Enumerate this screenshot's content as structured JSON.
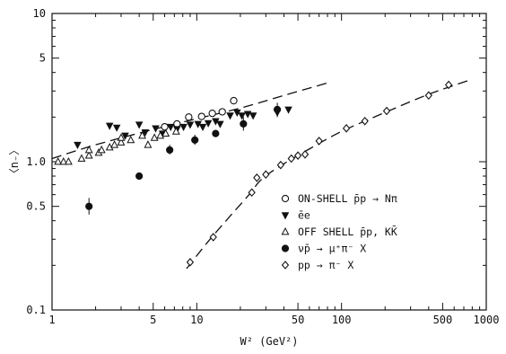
{
  "chart_data": {
    "type": "scatter",
    "title": "",
    "xlabel": "W² (GeV²)",
    "ylabel": "〈n₋〉",
    "xscale": "log",
    "yscale": "log",
    "xlim": [
      1,
      1000
    ],
    "ylim": [
      0.1,
      10
    ],
    "grid": false,
    "legend_position": "lower-right",
    "x_tick_labels": [
      {
        "value": 1,
        "label": "1"
      },
      {
        "value": 5,
        "label": "5"
      },
      {
        "value": 10,
        "label": "10"
      },
      {
        "value": 50,
        "label": "50"
      },
      {
        "value": 100,
        "label": "100"
      },
      {
        "value": 500,
        "label": "500"
      },
      {
        "value": 1000,
        "label": "1000"
      }
    ],
    "y_tick_labels": [
      {
        "value": 0.1,
        "label": "0.1"
      },
      {
        "value": 0.5,
        "label": "0.5"
      },
      {
        "value": 1.0,
        "label": "1.0"
      },
      {
        "value": 5,
        "label": "5"
      },
      {
        "value": 10,
        "label": "10"
      }
    ],
    "series": [
      {
        "key": "onshell",
        "name": "ON-SHELL p̄p → Nπ",
        "marker": "open-circle",
        "points": [
          {
            "x": 6.0,
            "y": 1.72
          },
          {
            "x": 7.3,
            "y": 1.8
          },
          {
            "x": 8.8,
            "y": 2.0
          },
          {
            "x": 10.8,
            "y": 2.02
          },
          {
            "x": 12.8,
            "y": 2.12
          },
          {
            "x": 15.0,
            "y": 2.17
          },
          {
            "x": 18.0,
            "y": 2.58
          }
        ]
      },
      {
        "key": "ee",
        "name": "ēe",
        "marker": "filled-down-triangle",
        "points": [
          {
            "x": 1.5,
            "y": 1.3
          },
          {
            "x": 2.5,
            "y": 1.75
          },
          {
            "x": 2.8,
            "y": 1.7
          },
          {
            "x": 3.2,
            "y": 1.5
          },
          {
            "x": 4.0,
            "y": 1.78
          },
          {
            "x": 4.4,
            "y": 1.58
          },
          {
            "x": 5.2,
            "y": 1.68
          },
          {
            "x": 5.8,
            "y": 1.55
          },
          {
            "x": 6.6,
            "y": 1.72
          },
          {
            "x": 7.3,
            "y": 1.66
          },
          {
            "x": 8.1,
            "y": 1.72
          },
          {
            "x": 9.0,
            "y": 1.78
          },
          {
            "x": 10.2,
            "y": 1.8
          },
          {
            "x": 11.0,
            "y": 1.72
          },
          {
            "x": 12.0,
            "y": 1.82
          },
          {
            "x": 13.5,
            "y": 1.88
          },
          {
            "x": 14.5,
            "y": 1.8
          },
          {
            "x": 17.0,
            "y": 2.05
          },
          {
            "x": 19.0,
            "y": 2.15
          },
          {
            "x": 20.5,
            "y": 2.05
          },
          {
            "x": 22.5,
            "y": 2.1
          },
          {
            "x": 24.5,
            "y": 2.05
          },
          {
            "x": 36.0,
            "y": 2.15
          },
          {
            "x": 43.0,
            "y": 2.25
          }
        ]
      },
      {
        "key": "offshell",
        "name": "OFF SHELL p̄p, KK̄",
        "marker": "open-up-triangle",
        "points": [
          {
            "x": 1.1,
            "y": 1.0
          },
          {
            "x": 1.2,
            "y": 1.0
          },
          {
            "x": 1.3,
            "y": 1.0
          },
          {
            "x": 1.6,
            "y": 1.05
          },
          {
            "x": 1.8,
            "y": 1.1
          },
          {
            "x": 1.8,
            "y": 1.2
          },
          {
            "x": 2.1,
            "y": 1.15
          },
          {
            "x": 2.2,
            "y": 1.2
          },
          {
            "x": 2.5,
            "y": 1.25
          },
          {
            "x": 2.7,
            "y": 1.3
          },
          {
            "x": 3.0,
            "y": 1.35
          },
          {
            "x": 3.0,
            "y": 1.45
          },
          {
            "x": 3.5,
            "y": 1.4
          },
          {
            "x": 4.2,
            "y": 1.5
          },
          {
            "x": 4.6,
            "y": 1.3
          },
          {
            "x": 5.1,
            "y": 1.45
          },
          {
            "x": 5.6,
            "y": 1.5
          },
          {
            "x": 6.1,
            "y": 1.55
          },
          {
            "x": 7.2,
            "y": 1.6
          }
        ]
      },
      {
        "key": "nubar",
        "name": "ν̄p → μ⁺π⁻ X",
        "marker": "filled-circle",
        "points": [
          {
            "x": 1.8,
            "y": 0.5,
            "err": [
              0.44,
              0.57
            ]
          },
          {
            "x": 4.0,
            "y": 0.8
          },
          {
            "x": 6.5,
            "y": 1.2,
            "err": [
              1.12,
              1.3
            ]
          },
          {
            "x": 9.7,
            "y": 1.4,
            "err": [
              1.3,
              1.52
            ]
          },
          {
            "x": 13.5,
            "y": 1.55
          },
          {
            "x": 21.0,
            "y": 1.8,
            "err": [
              1.62,
              2.0
            ]
          },
          {
            "x": 36.0,
            "y": 2.25,
            "err": [
              2.0,
              2.5
            ]
          }
        ]
      },
      {
        "key": "pp",
        "name": "pp → π⁻ X",
        "marker": "open-diamond",
        "points": [
          {
            "x": 9.0,
            "y": 0.21
          },
          {
            "x": 13.0,
            "y": 0.31
          },
          {
            "x": 24.0,
            "y": 0.62
          },
          {
            "x": 26.0,
            "y": 0.78
          },
          {
            "x": 30.0,
            "y": 0.82
          },
          {
            "x": 38.0,
            "y": 0.95
          },
          {
            "x": 45.0,
            "y": 1.05
          },
          {
            "x": 50.0,
            "y": 1.1
          },
          {
            "x": 56.0,
            "y": 1.12
          },
          {
            "x": 70.0,
            "y": 1.38
          },
          {
            "x": 108.0,
            "y": 1.68
          },
          {
            "x": 145.0,
            "y": 1.88
          },
          {
            "x": 205.0,
            "y": 2.2
          },
          {
            "x": 400.0,
            "y": 2.8
          },
          {
            "x": 550.0,
            "y": 3.3
          }
        ]
      }
    ],
    "dashed_curves": [
      {
        "key": "fit-low",
        "points": [
          {
            "x": 1.0,
            "y": 1.05
          },
          {
            "x": 2.0,
            "y": 1.3
          },
          {
            "x": 5.0,
            "y": 1.65
          },
          {
            "x": 10.0,
            "y": 1.95
          },
          {
            "x": 20.0,
            "y": 2.3
          },
          {
            "x": 40.0,
            "y": 2.8
          },
          {
            "x": 80.0,
            "y": 3.4
          }
        ]
      },
      {
        "key": "fit-high",
        "points": [
          {
            "x": 8.5,
            "y": 0.19
          },
          {
            "x": 12.0,
            "y": 0.29
          },
          {
            "x": 17.0,
            "y": 0.43
          },
          {
            "x": 23.0,
            "y": 0.6
          },
          {
            "x": 28.0,
            "y": 0.76
          },
          {
            "x": 38.0,
            "y": 0.94
          },
          {
            "x": 60.0,
            "y": 1.22
          },
          {
            "x": 100.0,
            "y": 1.6
          },
          {
            "x": 200.0,
            "y": 2.15
          },
          {
            "x": 400.0,
            "y": 2.85
          },
          {
            "x": 800.0,
            "y": 3.6
          }
        ]
      }
    ]
  }
}
